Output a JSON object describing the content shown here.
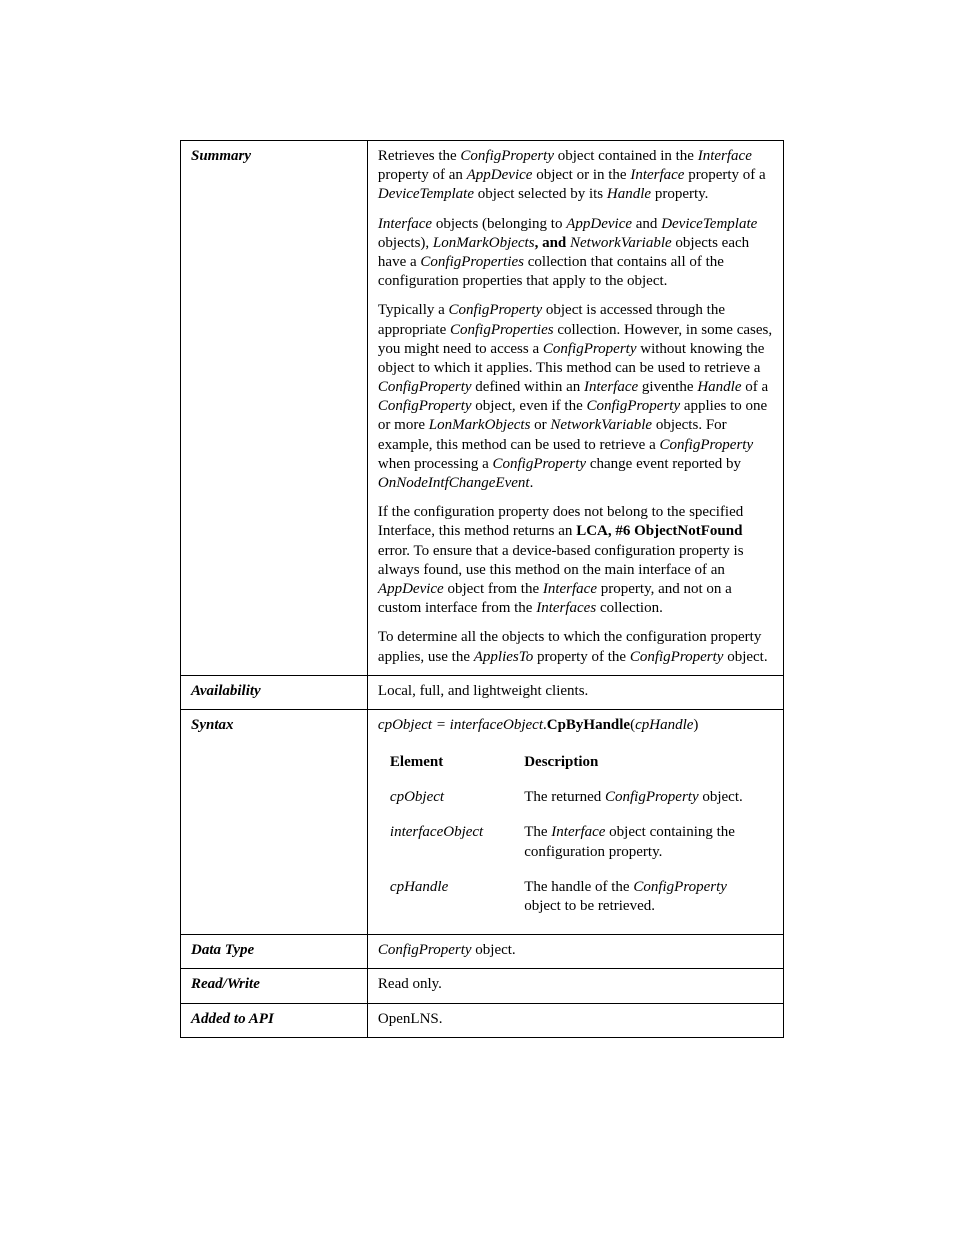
{
  "labels": {
    "summary": "Summary",
    "availability": "Availability",
    "syntax": "Syntax",
    "dataType": "Data Type",
    "readWrite": "Read/Write",
    "addedToApi": "Added to API"
  },
  "summary": {
    "p1_a": "Retrieves the ",
    "p1_b": "ConfigProperty",
    "p1_c": " object contained in the ",
    "p1_d": "Interface",
    "p1_e": " property of an ",
    "p1_f": "AppDevice",
    "p1_g": " object or in the ",
    "p1_h": "Interface",
    "p1_i": " property of a ",
    "p1_j": "DeviceTemplate",
    "p1_k": " object selected by its ",
    "p1_l": "Handle",
    "p1_m": " property.",
    "p2_a": "Interface",
    "p2_b": " objects (belonging to ",
    "p2_c": "AppDevice",
    "p2_d": " and ",
    "p2_e": "DeviceTemplate",
    "p2_f": " objects), ",
    "p2_g": "LonMarkObjects",
    "p2_h": ",  and ",
    "p2_i": "NetworkVariable",
    "p2_j": " objects each have a ",
    "p2_k": "ConfigProperties",
    "p2_l": " collection that contains all of the configuration properties that apply to the object.",
    "p3_a": "Typically a ",
    "p3_b": "ConfigProperty",
    "p3_c": " object is accessed through the appropriate ",
    "p3_d": "ConfigProperties",
    "p3_e": " collection.  However, in some cases, you might need to access a ",
    "p3_f": "ConfigProperty",
    "p3_g": " without knowing the object to which it applies.  This method can be used to retrieve a ",
    "p3_h": "ConfigProperty",
    "p3_i": " defined within an ",
    "p3_j": "Interface",
    "p3_k": " giventhe ",
    "p3_l": "Handle",
    "p3_m": " of a ",
    "p3_n": "ConfigProperty",
    "p3_o": " object, even if the ",
    "p3_p": "ConfigProperty",
    "p3_q": " applies to one or more ",
    "p3_r": "LonMarkObjects",
    "p3_s": " or ",
    "p3_t": "NetworkVariable",
    "p3_u": " objects.  For example, this method can be used to retrieve a ",
    "p3_v": "ConfigProperty",
    "p3_w": " when processing a ",
    "p3_x": "ConfigProperty",
    "p3_y": " change event reported by ",
    "p3_z": "OnNodeIntfChangeEvent",
    "p3_end": ".",
    "p4_a": "If the configuration property does not belong to the specified Interface, this method returns an ",
    "p4_b": "LCA, #6 ObjectNotFound",
    "p4_c": " error.  To ensure that a device-based configuration property is always found, use this method on the main interface of an ",
    "p4_d": "AppDevice",
    "p4_e": " object from the ",
    "p4_f": "Interface",
    "p4_g": " property, and not on a custom interface from the ",
    "p4_h": "Interfaces",
    "p4_i": " collection.",
    "p5_a": "To determine all the objects to which the configuration property applies, use the ",
    "p5_b": "AppliesTo",
    "p5_c": " property of the ",
    "p5_d": "ConfigProperty",
    "p5_e": " object."
  },
  "availability": "Local, full, and lightweight clients.",
  "syntax": {
    "line_a": "cpObject = interfaceObject",
    "line_b": ".",
    "line_c": "CpByHandle",
    "line_d": "(",
    "line_e": "cpHandle",
    "line_f": ")",
    "head_element": "Element",
    "head_desc": "Description",
    "rows": [
      {
        "elem": "cpObject",
        "desc_a": "The returned ",
        "desc_b": "ConfigProperty",
        "desc_c": " object."
      },
      {
        "elem": "interfaceObject",
        "desc_a": "The ",
        "desc_b": "Interface",
        "desc_c": " object containing the configuration property."
      },
      {
        "elem": "cpHandle",
        "desc_a": "The handle of the ",
        "desc_b": "ConfigProperty",
        "desc_c": " object to be retrieved."
      }
    ]
  },
  "dataType_a": "ConfigProperty",
  "dataType_b": " object.",
  "readWrite": "Read only.",
  "addedToApi": "OpenLNS."
}
